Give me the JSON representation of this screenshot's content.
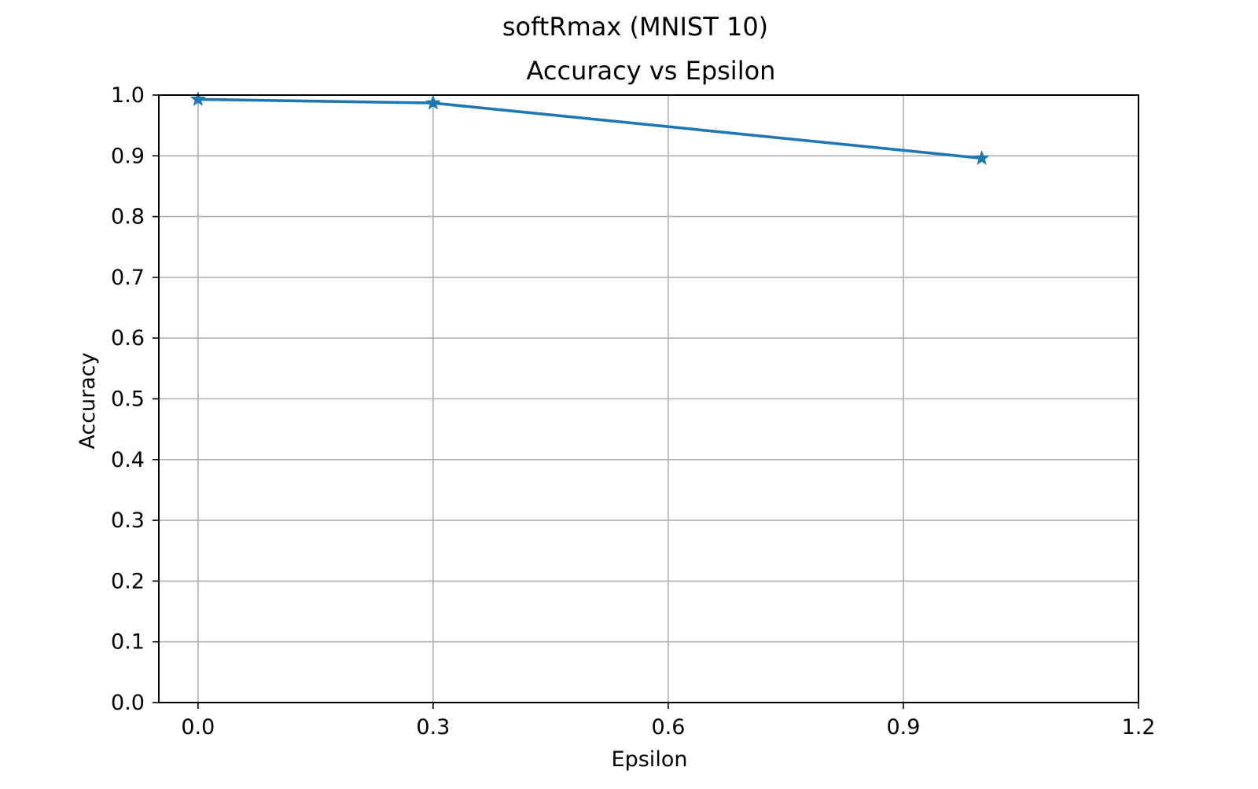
{
  "chart_data": {
    "type": "line",
    "suptitle": "softRmax (MNIST 10)",
    "title": "Accuracy vs Epsilon",
    "xlabel": "Epsilon",
    "ylabel": "Accuracy",
    "xlim": [
      -0.05,
      1.2
    ],
    "ylim": [
      0.0,
      1.0
    ],
    "xticks": [
      0.0,
      0.3,
      0.6,
      0.9,
      1.2
    ],
    "xtick_labels": [
      "0.0",
      "0.3",
      "0.6",
      "0.9",
      "1.2"
    ],
    "yticks": [
      0.0,
      0.1,
      0.2,
      0.3,
      0.4,
      0.5,
      0.6,
      0.7,
      0.8,
      0.9,
      1.0
    ],
    "ytick_labels": [
      "0.0",
      "0.1",
      "0.2",
      "0.3",
      "0.4",
      "0.5",
      "0.6",
      "0.7",
      "0.8",
      "0.9",
      "1.0"
    ],
    "grid": true,
    "series": [
      {
        "color": "#1f77b4",
        "marker": "star",
        "x": [
          0.0,
          0.3,
          1.0
        ],
        "y": [
          0.993,
          0.987,
          0.896
        ]
      }
    ]
  }
}
